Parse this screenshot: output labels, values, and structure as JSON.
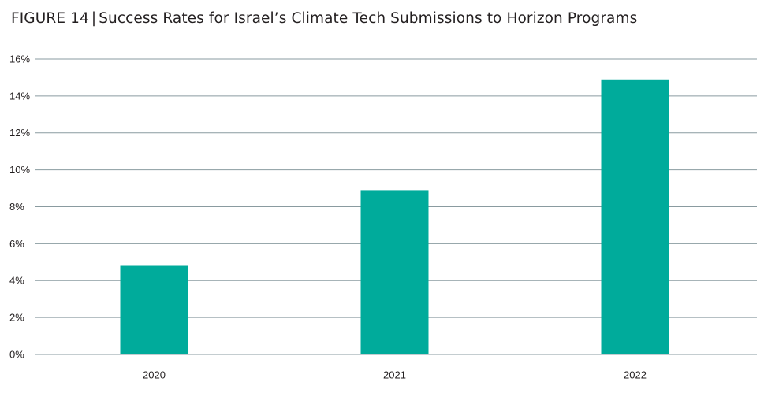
{
  "figure": {
    "label": "FIGURE 14",
    "separator": "|",
    "title": "Success Rates for Israel’s Climate Tech Submissions to Horizon Programs"
  },
  "colors": {
    "bar": "#00ab9b",
    "grid": "#8a9ba0",
    "text": "#231f20"
  },
  "chart_data": {
    "type": "bar",
    "title": "Success Rates for Israel’s Climate Tech Submissions to Horizon Programs",
    "categories": [
      "2020",
      "2021",
      "2022"
    ],
    "values": [
      4.8,
      8.9,
      14.9
    ],
    "unit": "%",
    "xlabel": "",
    "ylabel": "",
    "ylim": [
      0,
      16
    ],
    "yticks": [
      0,
      2,
      4,
      6,
      8,
      10,
      12,
      14,
      16
    ],
    "ytick_labels": [
      "0%",
      "2%",
      "4%",
      "6%",
      "8%",
      "10%",
      "12%",
      "14%",
      "16%"
    ],
    "grid": true,
    "legend": false
  }
}
